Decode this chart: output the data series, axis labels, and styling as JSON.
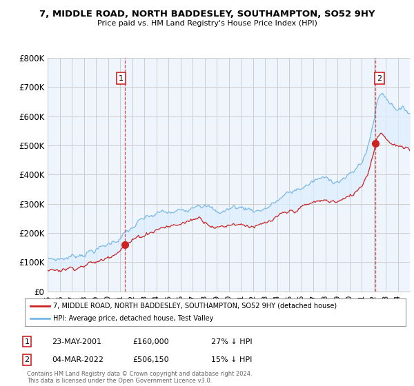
{
  "title": "7, MIDDLE ROAD, NORTH BADDESLEY, SOUTHAMPTON, SO52 9HY",
  "subtitle": "Price paid vs. HM Land Registry's House Price Index (HPI)",
  "ylabel_ticks": [
    "£0",
    "£100K",
    "£200K",
    "£300K",
    "£400K",
    "£500K",
    "£600K",
    "£700K",
    "£800K"
  ],
  "ylim": [
    0,
    800000
  ],
  "xlim_start": 1995.0,
  "xlim_end": 2025.0,
  "sale1_date": 2001.38,
  "sale1_price": 160000,
  "sale2_date": 2022.17,
  "sale2_price": 506150,
  "legend_entry1": "7, MIDDLE ROAD, NORTH BADDESLEY, SOUTHAMPTON, SO52 9HY (detached house)",
  "legend_entry2": "HPI: Average price, detached house, Test Valley",
  "annotation1_date": "23-MAY-2001",
  "annotation1_price": "£160,000",
  "annotation1_hpi": "27% ↓ HPI",
  "annotation2_date": "04-MAR-2022",
  "annotation2_price": "£506,150",
  "annotation2_hpi": "15% ↓ HPI",
  "footer": "Contains HM Land Registry data © Crown copyright and database right 2024.\nThis data is licensed under the Open Government Licence v3.0.",
  "hpi_color": "#7ab8e8",
  "price_color": "#cc2222",
  "fill_color": "#ddeeff",
  "vline_color": "#cc2222",
  "grid_color": "#cccccc",
  "background_color": "#ffffff",
  "plot_bg_color": "#eef5fc"
}
